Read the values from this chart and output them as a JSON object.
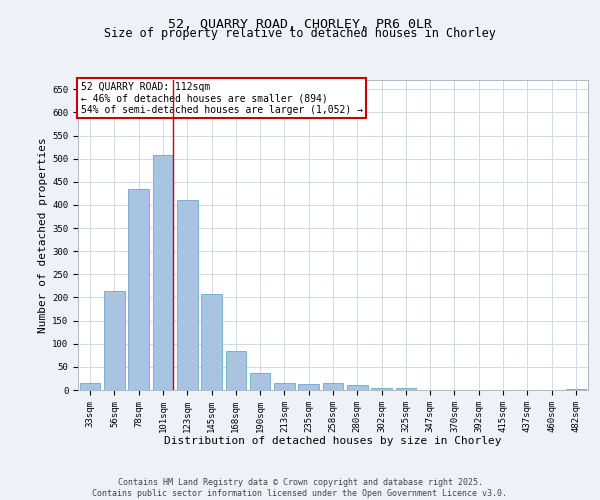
{
  "title1": "52, QUARRY ROAD, CHORLEY, PR6 0LR",
  "title2": "Size of property relative to detached houses in Chorley",
  "xlabel": "Distribution of detached houses by size in Chorley",
  "ylabel": "Number of detached properties",
  "categories": [
    "33sqm",
    "56sqm",
    "78sqm",
    "101sqm",
    "123sqm",
    "145sqm",
    "168sqm",
    "190sqm",
    "213sqm",
    "235sqm",
    "258sqm",
    "280sqm",
    "302sqm",
    "325sqm",
    "347sqm",
    "370sqm",
    "392sqm",
    "415sqm",
    "437sqm",
    "460sqm",
    "482sqm"
  ],
  "values": [
    15,
    215,
    435,
    507,
    410,
    207,
    84,
    37,
    15,
    13,
    15,
    10,
    5,
    4,
    1,
    1,
    0,
    0,
    1,
    0,
    3
  ],
  "bar_color": "#a8c4e0",
  "bar_edge_color": "#5a9ac9",
  "red_line_bin": 3,
  "annotation_text": "52 QUARRY ROAD: 112sqm\n← 46% of detached houses are smaller (894)\n54% of semi-detached houses are larger (1,052) →",
  "annotation_box_color": "#ffffff",
  "annotation_border_color": "#cc0000",
  "ylim": [
    0,
    670
  ],
  "yticks": [
    0,
    50,
    100,
    150,
    200,
    250,
    300,
    350,
    400,
    450,
    500,
    550,
    600,
    650
  ],
  "bg_color": "#eef2f7",
  "plot_bg_color": "#ffffff",
  "grid_color": "#c8d4e0",
  "footer_text": "Contains HM Land Registry data © Crown copyright and database right 2025.\nContains public sector information licensed under the Open Government Licence v3.0.",
  "title_fontsize": 9.5,
  "subtitle_fontsize": 8.5,
  "axis_label_fontsize": 8,
  "tick_fontsize": 6.5,
  "annotation_fontsize": 7,
  "footer_fontsize": 6
}
